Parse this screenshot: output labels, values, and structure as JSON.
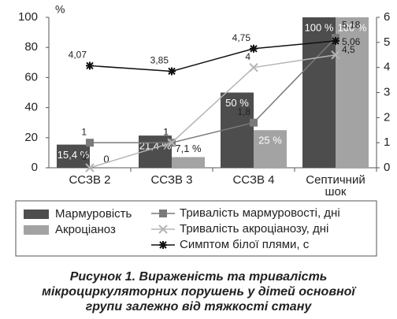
{
  "chart_data": {
    "type": "bar",
    "y_label": "%",
    "categories": [
      "ССЗВ 2",
      "ССЗВ 3",
      "ССЗВ 4",
      "Септичний шок"
    ],
    "ylim": [
      0,
      100
    ],
    "yticks": [
      0,
      20,
      40,
      60,
      80,
      100
    ],
    "y2lim": [
      0,
      6
    ],
    "y2ticks": [
      0,
      1,
      2,
      3,
      4,
      5,
      6
    ],
    "series": [
      {
        "name": "Мармуровість",
        "type": "bar",
        "color": "#4d4d4d",
        "values": [
          15.4,
          21.4,
          50,
          100
        ],
        "value_labels": [
          "15,4 %",
          "21,4 %",
          "50 %",
          "100 %"
        ]
      },
      {
        "name": "Акроціаноз",
        "type": "bar",
        "color": "#a3a3a3",
        "values": [
          0,
          7.1,
          25,
          100
        ],
        "value_labels": [
          "0",
          "7,1 %",
          "25 %",
          "100 %"
        ]
      },
      {
        "name": "Тривалість мармуровості, дні",
        "type": "line",
        "axis": "y2",
        "color": "#7a7a7a",
        "values": [
          1,
          1,
          1.8,
          5.18
        ],
        "value_labels": [
          "1",
          "1",
          "1,8",
          "5,18"
        ]
      },
      {
        "name": "Тривалість акроціанозу, дні",
        "type": "line",
        "axis": "y2",
        "color": "#b5b5b5",
        "values": [
          0,
          1,
          4,
          4.5
        ],
        "value_labels": [
          "0",
          "1",
          "4",
          "4,5"
        ]
      },
      {
        "name": "Симптом білої плями, с",
        "type": "line",
        "axis": "y2",
        "color": "#111111",
        "values": [
          4.07,
          3.85,
          4.75,
          5.06
        ],
        "value_labels": [
          "4,07",
          "3,85",
          "4,75",
          "5,06"
        ]
      }
    ],
    "caption": [
      "Рисунок 1.  Вираженість та тривалість",
      "мікроциркуляторних порушень у дітей основної",
      "групи залежно від тяжкості стану"
    ]
  }
}
